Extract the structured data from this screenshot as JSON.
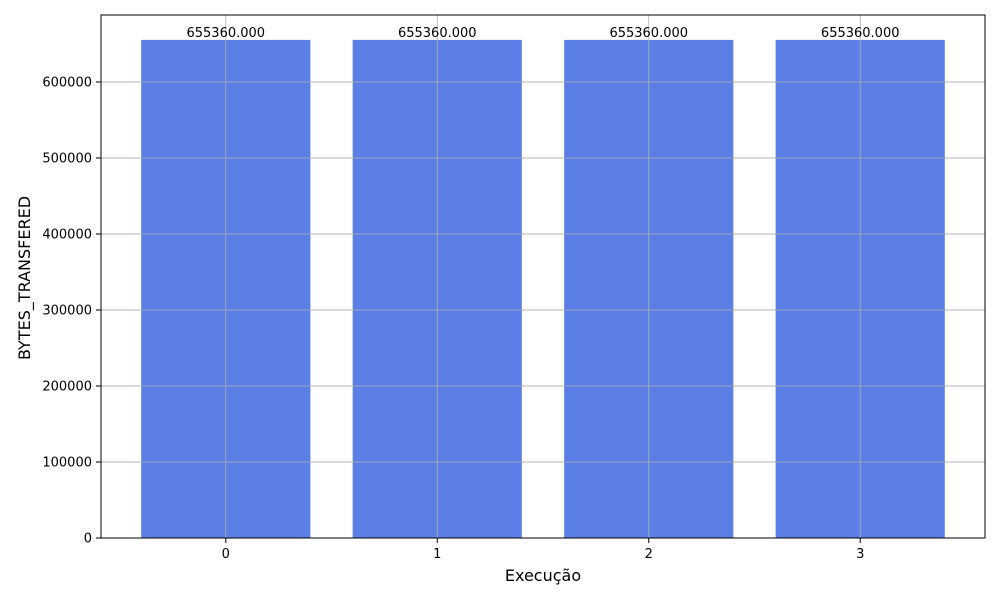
{
  "chart_data": {
    "type": "bar",
    "title": "",
    "xlabel": "Execução",
    "ylabel": "BYTES_TRANSFERED",
    "categories": [
      "0",
      "1",
      "2",
      "3"
    ],
    "values": [
      655360,
      655360,
      655360,
      655360
    ],
    "value_labels": [
      "655360.000",
      "655360.000",
      "655360.000",
      "655360.000"
    ],
    "ylim": [
      0,
      688128
    ],
    "yticks": [
      0,
      100000,
      200000,
      300000,
      400000,
      500000,
      600000
    ],
    "grid": true,
    "legend": "none",
    "colors": {
      "bar": "#5b7fe6",
      "grid": "#b0b0b0",
      "axis": "#000000"
    }
  }
}
